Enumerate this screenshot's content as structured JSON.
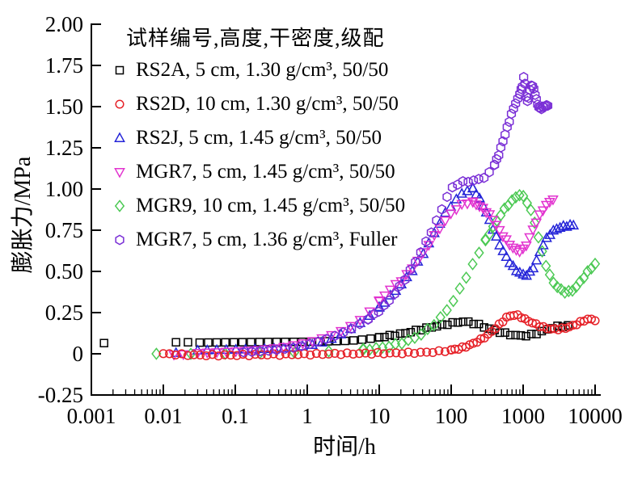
{
  "figure": {
    "background": "#ffffff",
    "axis_color": "#000000"
  },
  "chart_data": {
    "type": "scatter",
    "x_scale": "log",
    "grid": false,
    "xlabel": "时间/h",
    "ylabel": "膨胀力/MPa",
    "xlim": [
      0.001,
      10000
    ],
    "ylim": [
      -0.25,
      2.0
    ],
    "x_ticks": [
      {
        "label": "0.001",
        "value": 0.001
      },
      {
        "label": "0.01",
        "value": 0.01
      },
      {
        "label": "0.1",
        "value": 0.1
      },
      {
        "label": "1",
        "value": 1
      },
      {
        "label": "10",
        "value": 10
      },
      {
        "label": "100",
        "value": 100
      },
      {
        "label": "1000",
        "value": 1000
      },
      {
        "label": "10000",
        "value": 10000
      }
    ],
    "y_ticks": [
      {
        "label": "2.00",
        "value": 2.0
      },
      {
        "label": "1.75",
        "value": 1.75
      },
      {
        "label": "1.50",
        "value": 1.5
      },
      {
        "label": "1.25",
        "value": 1.25
      },
      {
        "label": "1.00",
        "value": 1.0
      },
      {
        "label": "0.75",
        "value": 0.75
      },
      {
        "label": "0.50",
        "value": 0.5
      },
      {
        "label": "0.25",
        "value": 0.25
      },
      {
        "label": "0",
        "value": 0
      },
      {
        "label": "-0.25",
        "value": -0.25
      }
    ],
    "legend": {
      "title": "试样编号,高度,干密度,级配",
      "position": "top-left-inside"
    },
    "series": [
      {
        "name": "RS2A, 5 cm, 1.30 g/cm³, 50/50",
        "marker": "square",
        "color": "#000000",
        "segments": [
          {
            "per_decade": 0,
            "points": [
              [
                0.0015,
                0.065
              ]
            ]
          },
          {
            "per_decade": 0,
            "points": [
              [
                0.015,
                0.07
              ],
              [
                0.022,
                0.07
              ]
            ]
          },
          {
            "per_decade": 9,
            "points": [
              [
                0.032,
                0.068
              ],
              [
                0.1,
                0.07
              ],
              [
                0.3,
                0.072
              ],
              [
                1,
                0.073
              ],
              [
                2,
                0.076
              ],
              [
                4,
                0.08
              ],
              [
                7,
                0.09
              ],
              [
                10,
                0.1
              ]
            ]
          },
          {
            "per_decade": 14,
            "points": [
              [
                10,
                0.1
              ],
              [
                20,
                0.12
              ],
              [
                40,
                0.15
              ],
              [
                70,
                0.172
              ],
              [
                100,
                0.185
              ],
              [
                150,
                0.195
              ],
              [
                220,
                0.182
              ],
              [
                300,
                0.16
              ],
              [
                450,
                0.135
              ],
              [
                650,
                0.118
              ],
              [
                900,
                0.11
              ],
              [
                1300,
                0.115
              ],
              [
                1800,
                0.135
              ],
              [
                2400,
                0.155
              ],
              [
                3000,
                0.165
              ],
              [
                4200,
                0.17
              ]
            ]
          }
        ]
      },
      {
        "name": "RS2J, 5 cm, 1.45 g/cm³, 50/50",
        "marker": "triangle-up",
        "color": "#2424d8",
        "segments": [
          {
            "per_decade": 0,
            "points": [
              [
                0.015,
                0.005
              ]
            ]
          },
          {
            "per_decade": 8,
            "points": [
              [
                0.03,
                0.02
              ],
              [
                0.1,
                0.025
              ],
              [
                0.3,
                0.03
              ],
              [
                0.7,
                0.04
              ],
              [
                1.5,
                0.065
              ],
              [
                3,
                0.12
              ],
              [
                6,
                0.2
              ],
              [
                10,
                0.28
              ]
            ]
          },
          {
            "per_decade": 14,
            "points": [
              [
                10,
                0.28
              ],
              [
                15,
                0.36
              ],
              [
                22,
                0.44
              ],
              [
                35,
                0.56
              ],
              [
                55,
                0.71
              ],
              [
                80,
                0.84
              ],
              [
                110,
                0.92
              ],
              [
                150,
                0.98
              ],
              [
                200,
                1.0
              ]
            ]
          },
          {
            "per_decade": 22,
            "points": [
              [
                200,
                1.0
              ],
              [
                240,
                0.95
              ],
              [
                320,
                0.84
              ],
              [
                430,
                0.7
              ],
              [
                560,
                0.6
              ],
              [
                750,
                0.52
              ],
              [
                950,
                0.485
              ],
              [
                1150,
                0.48
              ],
              [
                1450,
                0.54
              ],
              [
                1800,
                0.64
              ],
              [
                2300,
                0.72
              ],
              [
                3000,
                0.76
              ],
              [
                4000,
                0.775
              ],
              [
                5000,
                0.78
              ]
            ]
          }
        ]
      },
      {
        "name": "MGR9, 10 cm, 1.45 g/cm³, 50/50",
        "marker": "diamond",
        "color": "#4cc954",
        "segments": [
          {
            "per_decade": 2.6,
            "points": [
              [
                0.008,
                0.0
              ],
              [
                0.05,
                0.0
              ],
              [
                0.3,
                0.005
              ],
              [
                1,
                0.01
              ],
              [
                6,
                0.025
              ]
            ]
          },
          {
            "per_decade": 12,
            "points": [
              [
                6,
                0.025
              ],
              [
                12,
                0.04
              ],
              [
                20,
                0.065
              ],
              [
                32,
                0.1
              ],
              [
                50,
                0.155
              ],
              [
                75,
                0.23
              ],
              [
                110,
                0.33
              ],
              [
                150,
                0.44
              ],
              [
                210,
                0.56
              ],
              [
                300,
                0.69
              ]
            ]
          },
          {
            "per_decade": 20,
            "points": [
              [
                300,
                0.69
              ],
              [
                420,
                0.8
              ],
              [
                580,
                0.89
              ],
              [
                750,
                0.94
              ],
              [
                900,
                0.965
              ],
              [
                1100,
                0.93
              ],
              [
                1350,
                0.84
              ],
              [
                1650,
                0.7
              ],
              [
                2000,
                0.56
              ],
              [
                2500,
                0.45
              ],
              [
                3200,
                0.395
              ],
              [
                4000,
                0.375
              ],
              [
                5000,
                0.39
              ],
              [
                6300,
                0.44
              ],
              [
                8000,
                0.5
              ],
              [
                10000,
                0.545
              ]
            ]
          }
        ]
      },
      {
        "name": "MGR7, 5 cm, 1.45 g/cm³, 50/50",
        "marker": "triangle-down",
        "color": "#e233cf",
        "segments": [
          {
            "per_decade": 0,
            "points": [
              [
                0.014,
                -0.005
              ],
              [
                0.019,
                -0.003
              ]
            ]
          },
          {
            "per_decade": 8,
            "points": [
              [
                0.03,
                0.005
              ],
              [
                0.1,
                0.015
              ],
              [
                0.3,
                0.03
              ],
              [
                0.7,
                0.055
              ],
              [
                1.5,
                0.09
              ],
              [
                3,
                0.14
              ],
              [
                6,
                0.22
              ],
              [
                10,
                0.32
              ]
            ]
          },
          {
            "per_decade": 14,
            "points": [
              [
                10,
                0.32
              ],
              [
                15,
                0.4
              ],
              [
                22,
                0.46
              ],
              [
                35,
                0.57
              ],
              [
                55,
                0.7
              ],
              [
                80,
                0.8
              ],
              [
                110,
                0.87
              ],
              [
                150,
                0.91
              ],
              [
                200,
                0.92
              ]
            ]
          },
          {
            "per_decade": 22,
            "points": [
              [
                200,
                0.92
              ],
              [
                270,
                0.885
              ],
              [
                360,
                0.83
              ],
              [
                500,
                0.73
              ],
              [
                680,
                0.655
              ],
              [
                850,
                0.625
              ],
              [
                1050,
                0.645
              ],
              [
                1300,
                0.73
              ],
              [
                1600,
                0.82
              ],
              [
                2000,
                0.89
              ],
              [
                2600,
                0.94
              ]
            ]
          }
        ]
      },
      {
        "name": "RS2D, 10 cm, 1.30 g/cm³, 50/50",
        "marker": "circle",
        "color": "#e62128",
        "segments": [
          {
            "per_decade": 12,
            "points": [
              [
                0.01,
                0.0
              ],
              [
                0.03,
                -0.008
              ],
              [
                0.1,
                -0.008
              ],
              [
                0.3,
                -0.005
              ],
              [
                1,
                -0.003
              ],
              [
                3,
                0.0
              ],
              [
                10,
                0.003
              ],
              [
                30,
                0.006
              ],
              [
                60,
                0.012
              ],
              [
                100,
                0.022
              ]
            ]
          },
          {
            "per_decade": 20,
            "points": [
              [
                100,
                0.022
              ],
              [
                150,
                0.04
              ],
              [
                220,
                0.07
              ],
              [
                300,
                0.105
              ],
              [
                400,
                0.15
              ],
              [
                500,
                0.19
              ],
              [
                600,
                0.222
              ],
              [
                750,
                0.235
              ],
              [
                900,
                0.228
              ],
              [
                1100,
                0.205
              ],
              [
                1400,
                0.185
              ],
              [
                1800,
                0.165
              ],
              [
                2300,
                0.152
              ],
              [
                3000,
                0.15
              ],
              [
                4000,
                0.158
              ],
              [
                5000,
                0.172
              ],
              [
                6500,
                0.195
              ],
              [
                8000,
                0.21
              ],
              [
                10000,
                0.205
              ]
            ]
          }
        ]
      },
      {
        "name": "MGR7, 5 cm, 1.36 g/cm³, Fuller",
        "marker": "hexagon",
        "color": "#7a2fd6",
        "segments": [
          {
            "per_decade": 9,
            "points": [
              [
                0.13,
                0.01
              ],
              [
                0.3,
                0.02
              ],
              [
                0.6,
                0.035
              ],
              [
                1,
                0.055
              ],
              [
                2,
                0.095
              ],
              [
                4,
                0.15
              ],
              [
                7,
                0.21
              ]
            ]
          },
          {
            "per_decade": 14,
            "points": [
              [
                7,
                0.21
              ],
              [
                11,
                0.28
              ],
              [
                16,
                0.36
              ],
              [
                24,
                0.47
              ],
              [
                36,
                0.6
              ],
              [
                50,
                0.72
              ],
              [
                65,
                0.82
              ],
              [
                85,
                0.94
              ],
              [
                105,
                1.01
              ],
              [
                140,
                1.04
              ],
              [
                200,
                1.05
              ],
              [
                280,
                1.07
              ],
              [
                360,
                1.11
              ],
              [
                400,
                1.15
              ]
            ]
          },
          {
            "per_decade": 38,
            "points": [
              [
                400,
                1.15
              ],
              [
                450,
                1.2
              ],
              [
                550,
                1.32
              ],
              [
                650,
                1.42
              ],
              [
                750,
                1.5
              ],
              [
                850,
                1.55
              ],
              [
                900,
                1.58
              ]
            ]
          },
          {
            "per_decade": 60,
            "points": [
              [
                900,
                1.58
              ],
              [
                980,
                1.63
              ],
              [
                1030,
                1.68
              ],
              [
                1080,
                1.6
              ],
              [
                1130,
                1.53
              ],
              [
                1200,
                1.56
              ],
              [
                1300,
                1.63
              ],
              [
                1420,
                1.6
              ],
              [
                1550,
                1.53
              ],
              [
                1700,
                1.49
              ],
              [
                1950,
                1.5
              ],
              [
                2200,
                1.51
              ]
            ]
          }
        ]
      }
    ]
  }
}
